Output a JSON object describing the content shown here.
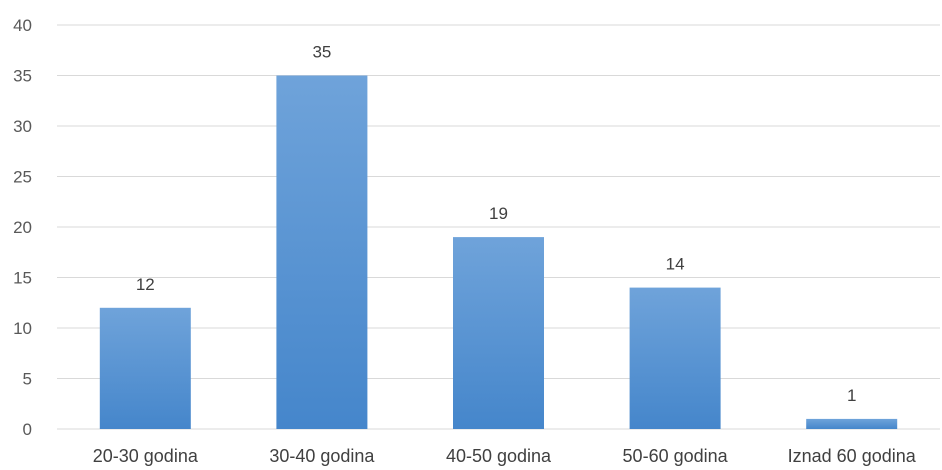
{
  "chart_data": {
    "type": "bar",
    "categories": [
      "20-30 godina",
      "30-40 godina",
      "40-50 godina",
      "50-60 godina",
      "Iznad 60 godina"
    ],
    "values": [
      12,
      35,
      19,
      14,
      1
    ],
    "data_labels": [
      "12",
      "35",
      "19",
      "14",
      "1"
    ],
    "title": "",
    "xlabel": "",
    "ylabel": "",
    "ylim": [
      0,
      40
    ],
    "yticks": [
      "0",
      "5",
      "10",
      "15",
      "20",
      "25",
      "30",
      "35",
      "40"
    ],
    "grid": true,
    "legend": "none",
    "colors": {
      "bar_top": "#6fa3da",
      "bar_bottom": "#4586cb",
      "grid": "#d9d9d9"
    }
  }
}
